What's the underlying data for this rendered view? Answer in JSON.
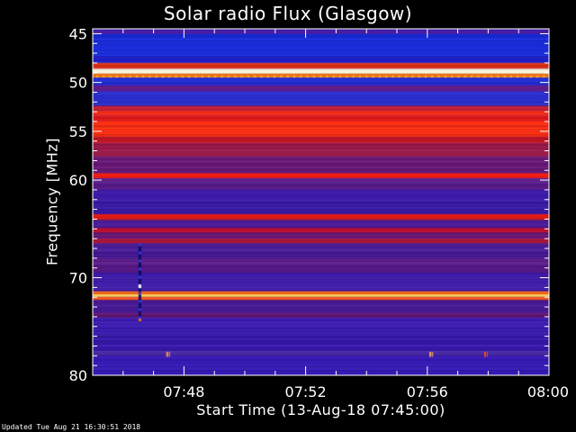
{
  "chart_data": {
    "type": "heatmap",
    "title": "Solar radio Flux (Glasgow)",
    "xlabel": "Start Time (13-Aug-18 07:45:00)",
    "ylabel": "Frequency [MHz]",
    "x_ticks": [
      "07:48",
      "07:52",
      "07:56",
      "08:00"
    ],
    "x_tick_minutes": [
      3,
      7,
      11,
      15
    ],
    "xlim_minutes": [
      0,
      15
    ],
    "y_ticks": [
      45,
      50,
      55,
      60,
      70,
      80
    ],
    "ylim_mhz": [
      44.5,
      80
    ],
    "background_color_mhz": "#3f1aa8",
    "bands_mhz": [
      {
        "f0": 44.8,
        "f1": 45.0,
        "color": "#5a1aa0"
      },
      {
        "f0": 45.0,
        "f1": 47.4,
        "color": "#1a2ee0"
      },
      {
        "f0": 47.4,
        "f1": 48.0,
        "color": "#2020d0"
      },
      {
        "f0": 48.0,
        "f1": 48.6,
        "color": "#e03010"
      },
      {
        "f0": 48.6,
        "f1": 49.1,
        "color": "#fffde0"
      },
      {
        "f0": 49.1,
        "f1": 49.5,
        "color": "#ff7a10"
      },
      {
        "f0": 49.5,
        "f1": 50.3,
        "color": "#2230d8"
      },
      {
        "f0": 50.3,
        "f1": 50.9,
        "color": "#6a2090"
      },
      {
        "f0": 50.9,
        "f1": 52.4,
        "color": "#2a2ed0"
      },
      {
        "f0": 52.4,
        "f1": 52.9,
        "color": "#c01830"
      },
      {
        "f0": 52.9,
        "f1": 53.4,
        "color": "#ff2a10"
      },
      {
        "f0": 53.4,
        "f1": 54.0,
        "color": "#e81a18"
      },
      {
        "f0": 54.0,
        "f1": 55.6,
        "color": "#ff3010"
      },
      {
        "f0": 55.6,
        "f1": 56.2,
        "color": "#d01820"
      },
      {
        "f0": 56.2,
        "f1": 57.6,
        "color": "#9a1848"
      },
      {
        "f0": 57.6,
        "f1": 59.3,
        "color": "#6a1878"
      },
      {
        "f0": 59.3,
        "f1": 59.8,
        "color": "#ff2010"
      },
      {
        "f0": 59.8,
        "f1": 61.0,
        "color": "#5a1a8a"
      },
      {
        "f0": 61.0,
        "f1": 63.5,
        "color": "#3c1aa8"
      },
      {
        "f0": 63.5,
        "f1": 64.1,
        "color": "#e8180e"
      },
      {
        "f0": 64.1,
        "f1": 64.9,
        "color": "#4a1a9a"
      },
      {
        "f0": 64.9,
        "f1": 65.4,
        "color": "#c01030"
      },
      {
        "f0": 65.4,
        "f1": 66.0,
        "color": "#6a1878"
      },
      {
        "f0": 66.0,
        "f1": 66.5,
        "color": "#b01838"
      },
      {
        "f0": 66.5,
        "f1": 68.0,
        "color": "#4a1a98"
      },
      {
        "f0": 68.0,
        "f1": 69.5,
        "color": "#5a1a8a"
      },
      {
        "f0": 69.5,
        "f1": 71.4,
        "color": "#3e1aa8"
      },
      {
        "f0": 71.4,
        "f1": 71.7,
        "color": "#ff6a10"
      },
      {
        "f0": 71.7,
        "f1": 72.0,
        "color": "#ffd060"
      },
      {
        "f0": 72.0,
        "f1": 72.3,
        "color": "#ff5010"
      },
      {
        "f0": 72.3,
        "f1": 73.6,
        "color": "#4a1a98"
      },
      {
        "f0": 73.6,
        "f1": 74.1,
        "color": "#6a1878"
      },
      {
        "f0": 74.1,
        "f1": 77.5,
        "color": "#3a1ab0"
      },
      {
        "f0": 77.5,
        "f1": 78.0,
        "color": "#4a2aa8"
      },
      {
        "f0": 78.0,
        "f1": 80.0,
        "color": "#381ab8"
      }
    ],
    "spikes": [
      {
        "minute": 1.55,
        "f0": 66.5,
        "f1": 74.5,
        "color": "#0a0a60"
      },
      {
        "minute": 2.45,
        "f0": 77.6,
        "f1": 78.1,
        "color": "#ff9a40"
      },
      {
        "minute": 11.1,
        "f0": 77.6,
        "f1": 78.1,
        "color": "#ffb060"
      },
      {
        "minute": 12.9,
        "f0": 77.6,
        "f1": 78.1,
        "color": "#ff4a10"
      }
    ]
  },
  "footer": {
    "updated": "Updated Tue Aug 21 16:30:51 2018"
  }
}
